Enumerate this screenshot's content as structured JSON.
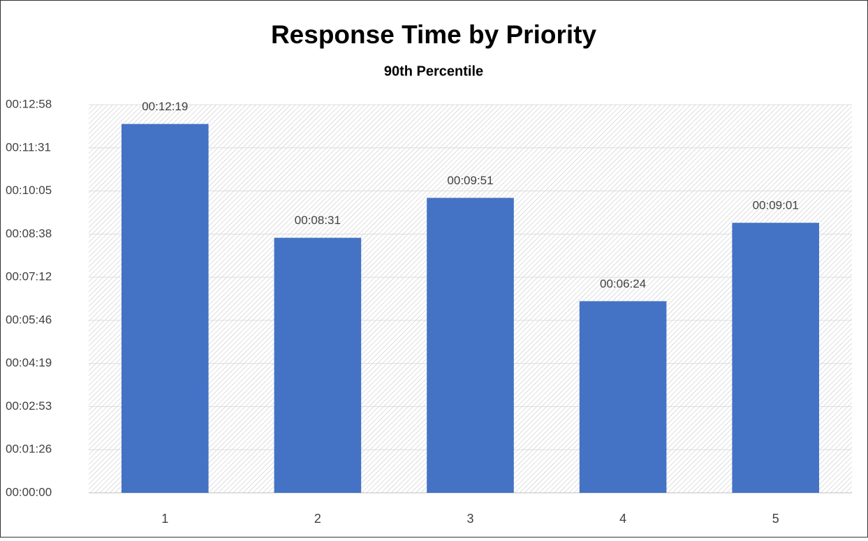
{
  "chart_data": {
    "type": "bar",
    "title": "Response Time by Priority",
    "subtitle": "90th Percentile",
    "categories": [
      "1",
      "2",
      "3",
      "4",
      "5"
    ],
    "values": [
      739,
      511,
      591,
      384,
      541
    ],
    "value_labels": [
      "00:12:19",
      "00:08:31",
      "00:09:51",
      "00:06:24",
      "00:09:01"
    ],
    "color": "#4472c4",
    "ylim": [
      0,
      777.6
    ],
    "yticks": [
      {
        "value": 0,
        "label": "00:00:00"
      },
      {
        "value": 86.4,
        "label": "00:01:26"
      },
      {
        "value": 172.8,
        "label": "00:02:53"
      },
      {
        "value": 259.2,
        "label": "00:04:19"
      },
      {
        "value": 345.6,
        "label": "00:05:46"
      },
      {
        "value": 432,
        "label": "00:07:12"
      },
      {
        "value": 518.4,
        "label": "00:08:38"
      },
      {
        "value": 604.8,
        "label": "00:10:05"
      },
      {
        "value": 691.2,
        "label": "00:11:31"
      },
      {
        "value": 777.6,
        "label": "00:12:58"
      }
    ],
    "grid": true
  }
}
